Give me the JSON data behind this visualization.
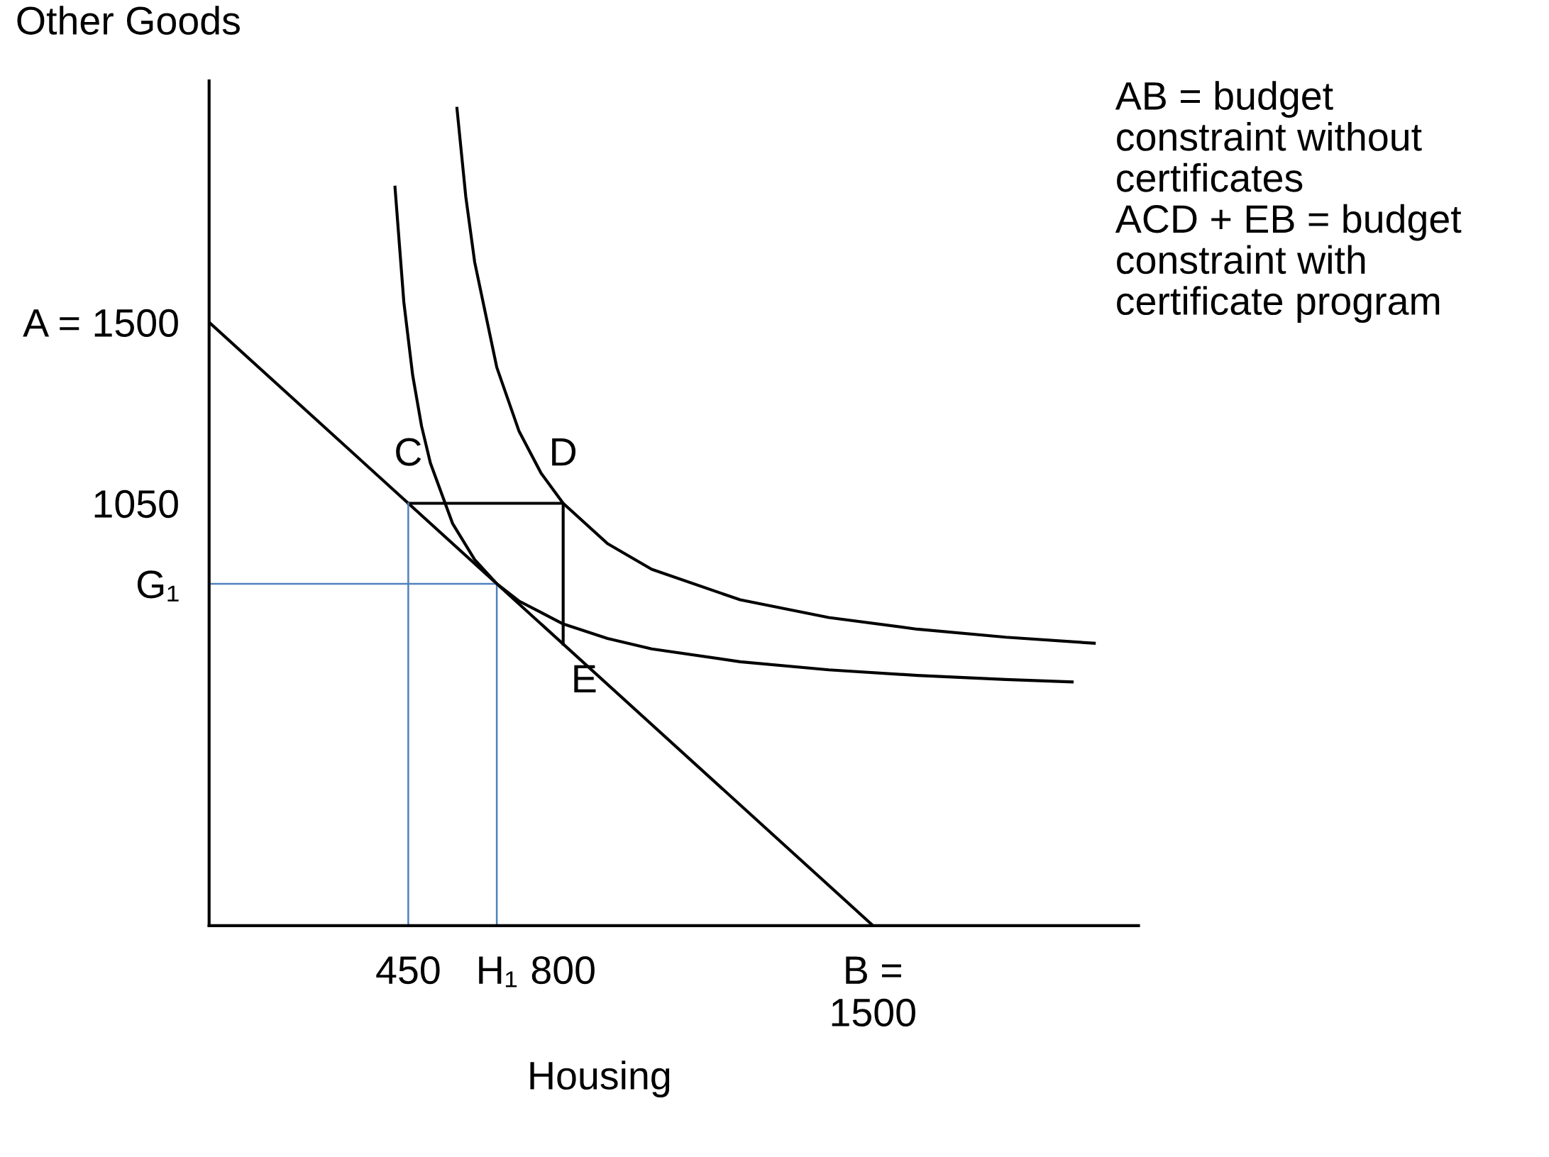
{
  "chart_data": {
    "type": "line",
    "ylabel": "Other Goods",
    "xlabel": "Housing",
    "xlim": [
      0,
      2100
    ],
    "ylim": [
      0,
      2100
    ],
    "xticks": [
      450,
      {
        "value": 650,
        "label": "H₁"
      },
      800,
      {
        "value": 1500,
        "label": "B =\n1500"
      }
    ],
    "yticks": [
      {
        "value": 850,
        "label": "G₁"
      },
      1050,
      {
        "value": 1500,
        "label": "A = 1500"
      }
    ],
    "grid": false,
    "marker": "none",
    "line_style": "solid",
    "series": [
      {
        "color": "#000000",
        "x": [
          0,
          1500
        ],
        "values": [
          1500,
          0
        ]
      },
      {
        "color": "#000000",
        "x": [
          450,
          800,
          800
        ],
        "values": [
          1050,
          1050,
          700
        ]
      },
      {
        "color": "#4f81bd",
        "x": [
          450,
          450
        ],
        "values": [
          0,
          1050
        ]
      },
      {
        "color": "#4f81bd",
        "x": [
          0,
          650,
          650
        ],
        "values": [
          850,
          850,
          0
        ]
      },
      {
        "color": "#000000",
        "x": [
          420,
          440,
          460,
          480,
          500,
          550,
          600,
          650,
          700,
          800,
          900,
          1000,
          1200,
          1400,
          1600,
          1800,
          1950
        ],
        "values": [
          1836,
          1550,
          1368,
          1242,
          1150,
          1000,
          910,
          850,
          807,
          750,
          714,
          688,
          656,
          636,
          622,
          612,
          606
        ]
      },
      {
        "color": "#000000",
        "x": [
          560,
          580,
          600,
          650,
          700,
          750,
          800,
          900,
          1000,
          1200,
          1400,
          1600,
          1800,
          2000
        ],
        "values": [
          2032,
          1812,
          1650,
          1388,
          1230,
          1125,
          1050,
          950,
          886,
          810,
          766,
          737,
          717,
          702
        ]
      }
    ],
    "annotations": [
      "C",
      "D",
      "E",
      "AB = budget\nconstraint without\ncertificates\nACD + EB = budget\nconstraint with\ncertificate program"
    ]
  }
}
